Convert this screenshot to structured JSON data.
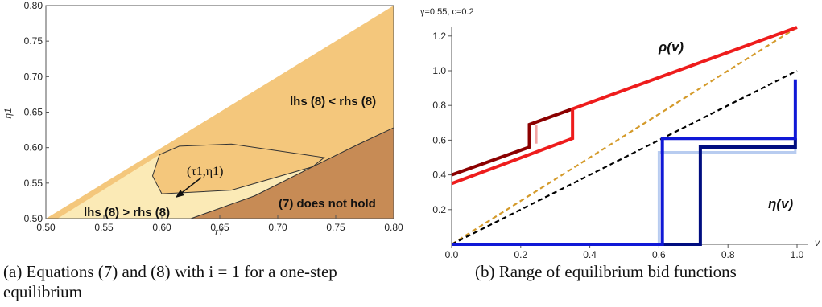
{
  "chart_data": [
    {
      "type": "region",
      "xlabel": "τ1",
      "ylabel": "η1",
      "xlim": [
        0.5,
        0.8
      ],
      "ylim": [
        0.5,
        0.8
      ],
      "x_ticks": [
        "0.50",
        "0.55",
        "0.60",
        "0.65",
        "0.70",
        "0.75",
        "0.80"
      ],
      "y_ticks": [
        "0.50",
        "0.55",
        "0.60",
        "0.65",
        "0.70",
        "0.75",
        "0.80"
      ],
      "colors": {
        "upper": "#f4c77c",
        "middle": "#fbeab6",
        "lower": "#c78b55",
        "curve": "#333333"
      },
      "regions": [
        {
          "label": "lhs (8) < rhs (8)"
        },
        {
          "label": "lhs (8) > rhs (8)"
        },
        {
          "label": "(7) does not hold"
        }
      ],
      "boundary_curve": [
        {
          "x": 0.625,
          "y": 0.5
        },
        {
          "x": 0.68,
          "y": 0.532
        },
        {
          "x": 0.73,
          "y": 0.573
        },
        {
          "x": 0.77,
          "y": 0.605
        },
        {
          "x": 0.8,
          "y": 0.628
        }
      ],
      "loop_curve": [
        {
          "x": 0.598,
          "y": 0.59
        },
        {
          "x": 0.615,
          "y": 0.602
        },
        {
          "x": 0.66,
          "y": 0.605
        },
        {
          "x": 0.74,
          "y": 0.586
        },
        {
          "x": 0.73,
          "y": 0.573
        },
        {
          "x": 0.66,
          "y": 0.54
        },
        {
          "x": 0.6,
          "y": 0.535
        },
        {
          "x": 0.592,
          "y": 0.56
        },
        {
          "x": 0.598,
          "y": 0.59
        }
      ],
      "annotation": {
        "label": "(τ1,η1)",
        "x": 0.598,
        "y": 0.532
      }
    },
    {
      "type": "line",
      "note": "γ=0.55, c=0.2",
      "xlabel": "v",
      "xlim": [
        0,
        1
      ],
      "ylim": [
        0,
        1.25
      ],
      "x_ticks": [
        "0.0",
        "0.2",
        "0.4",
        "0.6",
        "0.8",
        "1.0"
      ],
      "y_ticks": [
        "0.2",
        "0.4",
        "0.6",
        "0.8",
        "1.0",
        "1.2"
      ],
      "series": [
        {
          "name": "ρ(v)",
          "color": "#ee1c1c",
          "points": [
            [
              0,
              0.35
            ],
            [
              0.35,
              0.61
            ],
            [
              0.35,
              0.78
            ],
            [
              1.0,
              1.25
            ]
          ]
        },
        {
          "color": "#8b0000",
          "points": [
            [
              0,
              0.4
            ],
            [
              0.225,
              0.56
            ],
            [
              0.225,
              0.69
            ],
            [
              0.35,
              0.78
            ]
          ]
        },
        {
          "color": "#f3a3a3",
          "points": [
            [
              0.245,
              0.69
            ],
            [
              0.245,
              0.58
            ]
          ]
        },
        {
          "name": "η(v)",
          "color": "#1018d6",
          "points": [
            [
              0,
              0
            ],
            [
              0.61,
              0
            ],
            [
              0.61,
              0.61
            ],
            [
              0.995,
              0.61
            ],
            [
              0.995,
              0.95
            ]
          ]
        },
        {
          "color": "#000d80",
          "points": [
            [
              0.61,
              0
            ],
            [
              0.72,
              0
            ],
            [
              0.72,
              0.56
            ],
            [
              0.995,
              0.56
            ],
            [
              0.995,
              0.61
            ]
          ]
        },
        {
          "color": "#b8ccf0",
          "points": [
            [
              0.6,
              0
            ],
            [
              0.6,
              0.53
            ],
            [
              0.995,
              0.53
            ],
            [
              0.995,
              0.56
            ]
          ]
        },
        {
          "color": "#d49a2a",
          "dash": true,
          "points": [
            [
              0,
              0
            ],
            [
              1.0,
              1.25
            ]
          ]
        },
        {
          "color": "#000000",
          "dash": true,
          "points": [
            [
              0,
              0
            ],
            [
              1.0,
              1.0
            ]
          ]
        }
      ]
    }
  ],
  "captions": {
    "a": "(a) Equations (7) and (8) with i = 1 for a one-step equilibrium",
    "b": "(b) Range of equilibrium bid functions"
  }
}
